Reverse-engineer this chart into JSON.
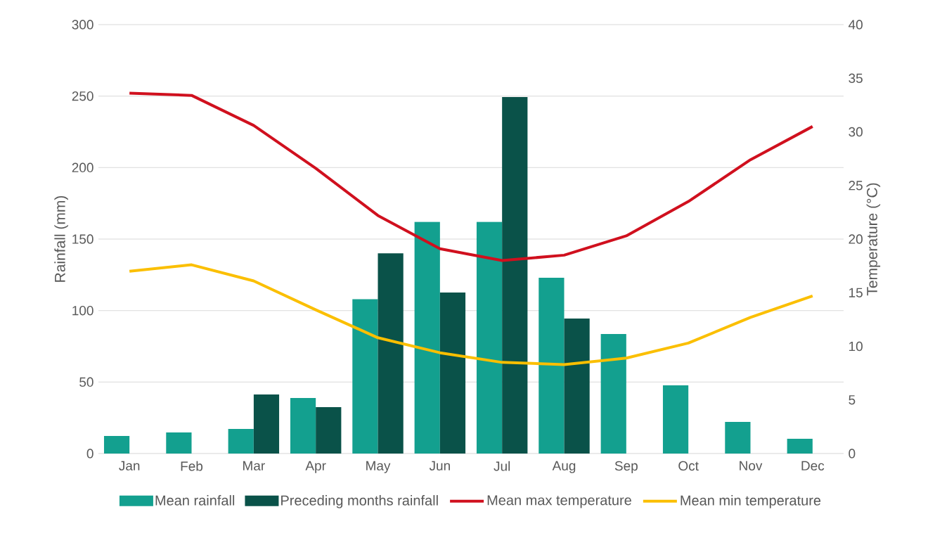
{
  "chart_data": {
    "type": "bar",
    "categories": [
      "Jan",
      "Feb",
      "Mar",
      "Apr",
      "May",
      "Jun",
      "Jul",
      "Aug",
      "Sep",
      "Oct",
      "Nov",
      "Dec"
    ],
    "series": [
      {
        "name": "Mean rainfall",
        "color": "#13a08f",
        "values": [
          12.3,
          14.8,
          17.2,
          38.9,
          108,
          162,
          162,
          123,
          83.6,
          47.7,
          22.1,
          10.3
        ]
      },
      {
        "name": "Preceding months rainfall",
        "color": "#0a5249",
        "values": [
          null,
          null,
          41.3,
          32.5,
          140,
          112.6,
          249.4,
          94.4,
          null,
          null,
          null,
          null
        ]
      },
      {
        "name": "Mean max temperature",
        "type": "line",
        "axis": "y2",
        "color": "#d0101e",
        "values": [
          33.6,
          33.4,
          30.6,
          26.6,
          22.2,
          19.1,
          18.0,
          18.5,
          20.3,
          23.5,
          27.4,
          30.5
        ]
      },
      {
        "name": "Mean min temperature",
        "type": "line",
        "axis": "y2",
        "color": "#fbbf00",
        "values": [
          17.0,
          17.6,
          16.1,
          13.4,
          10.8,
          9.4,
          8.5,
          8.3,
          8.9,
          10.3,
          12.7,
          14.7
        ]
      }
    ],
    "ylabel": "Rainfall (mm)",
    "y2label": "Temperature (°C)",
    "ylim": [
      0,
      300
    ],
    "yticks": [
      0,
      50,
      100,
      150,
      200,
      250,
      300
    ],
    "y2lim": [
      0,
      40
    ],
    "y2ticks": [
      0,
      5,
      10,
      15,
      20,
      25,
      30,
      35,
      40
    ],
    "grid": "y",
    "legend": "bottom"
  }
}
